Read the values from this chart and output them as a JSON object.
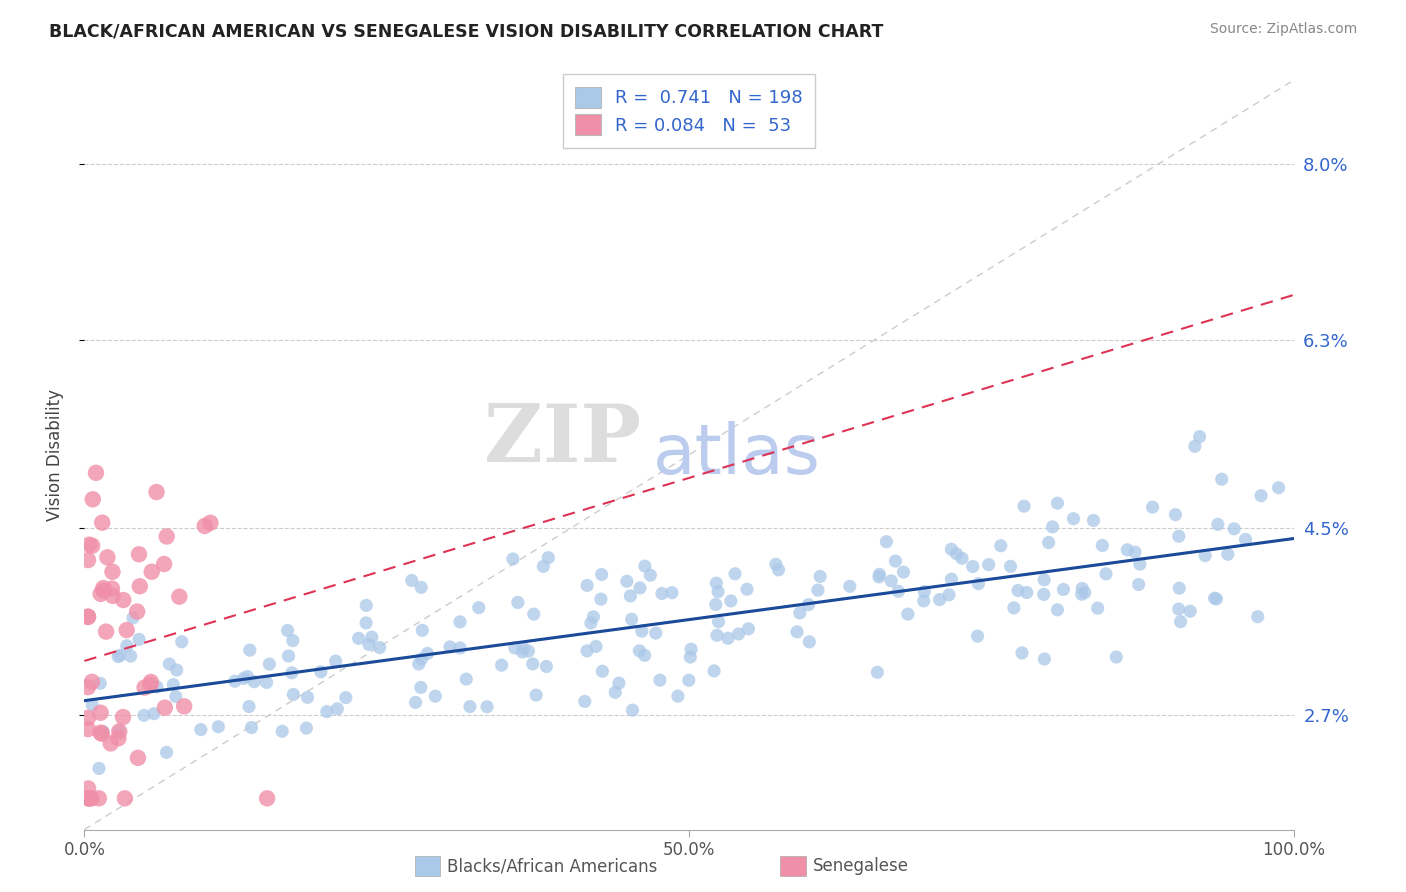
{
  "title": "BLACK/AFRICAN AMERICAN VS SENEGALESE VISION DISABILITY CORRELATION CHART",
  "source": "Source: ZipAtlas.com",
  "xlabel_blue": "Blacks/African Americans",
  "xlabel_pink": "Senegalese",
  "ylabel": "Vision Disability",
  "x_min": 0.0,
  "x_max": 1.0,
  "y_min": 0.016,
  "y_max": 0.088,
  "yticks": [
    0.027,
    0.045,
    0.063,
    0.08
  ],
  "ytick_labels": [
    "2.7%",
    "4.5%",
    "6.3%",
    "8.0%"
  ],
  "xticks": [
    0.0,
    0.5,
    1.0
  ],
  "xtick_labels": [
    "0.0%",
    "50.0%",
    "100.0%"
  ],
  "blue_R": "0.741",
  "blue_N": "198",
  "pink_R": "0.084",
  "pink_N": "53",
  "blue_color": "#aac8e8",
  "blue_line_color": "#1a4a99",
  "pink_color": "#f090a8",
  "pink_line_color": "#dd3355",
  "diagonal_color": "#cccccc",
  "legend_R_color": "#3366cc",
  "watermark_ZIP": "ZIP",
  "watermark_atlas": "atlas",
  "watermark_ZIP_color": "#dddddd",
  "watermark_atlas_color": "#bbccee"
}
